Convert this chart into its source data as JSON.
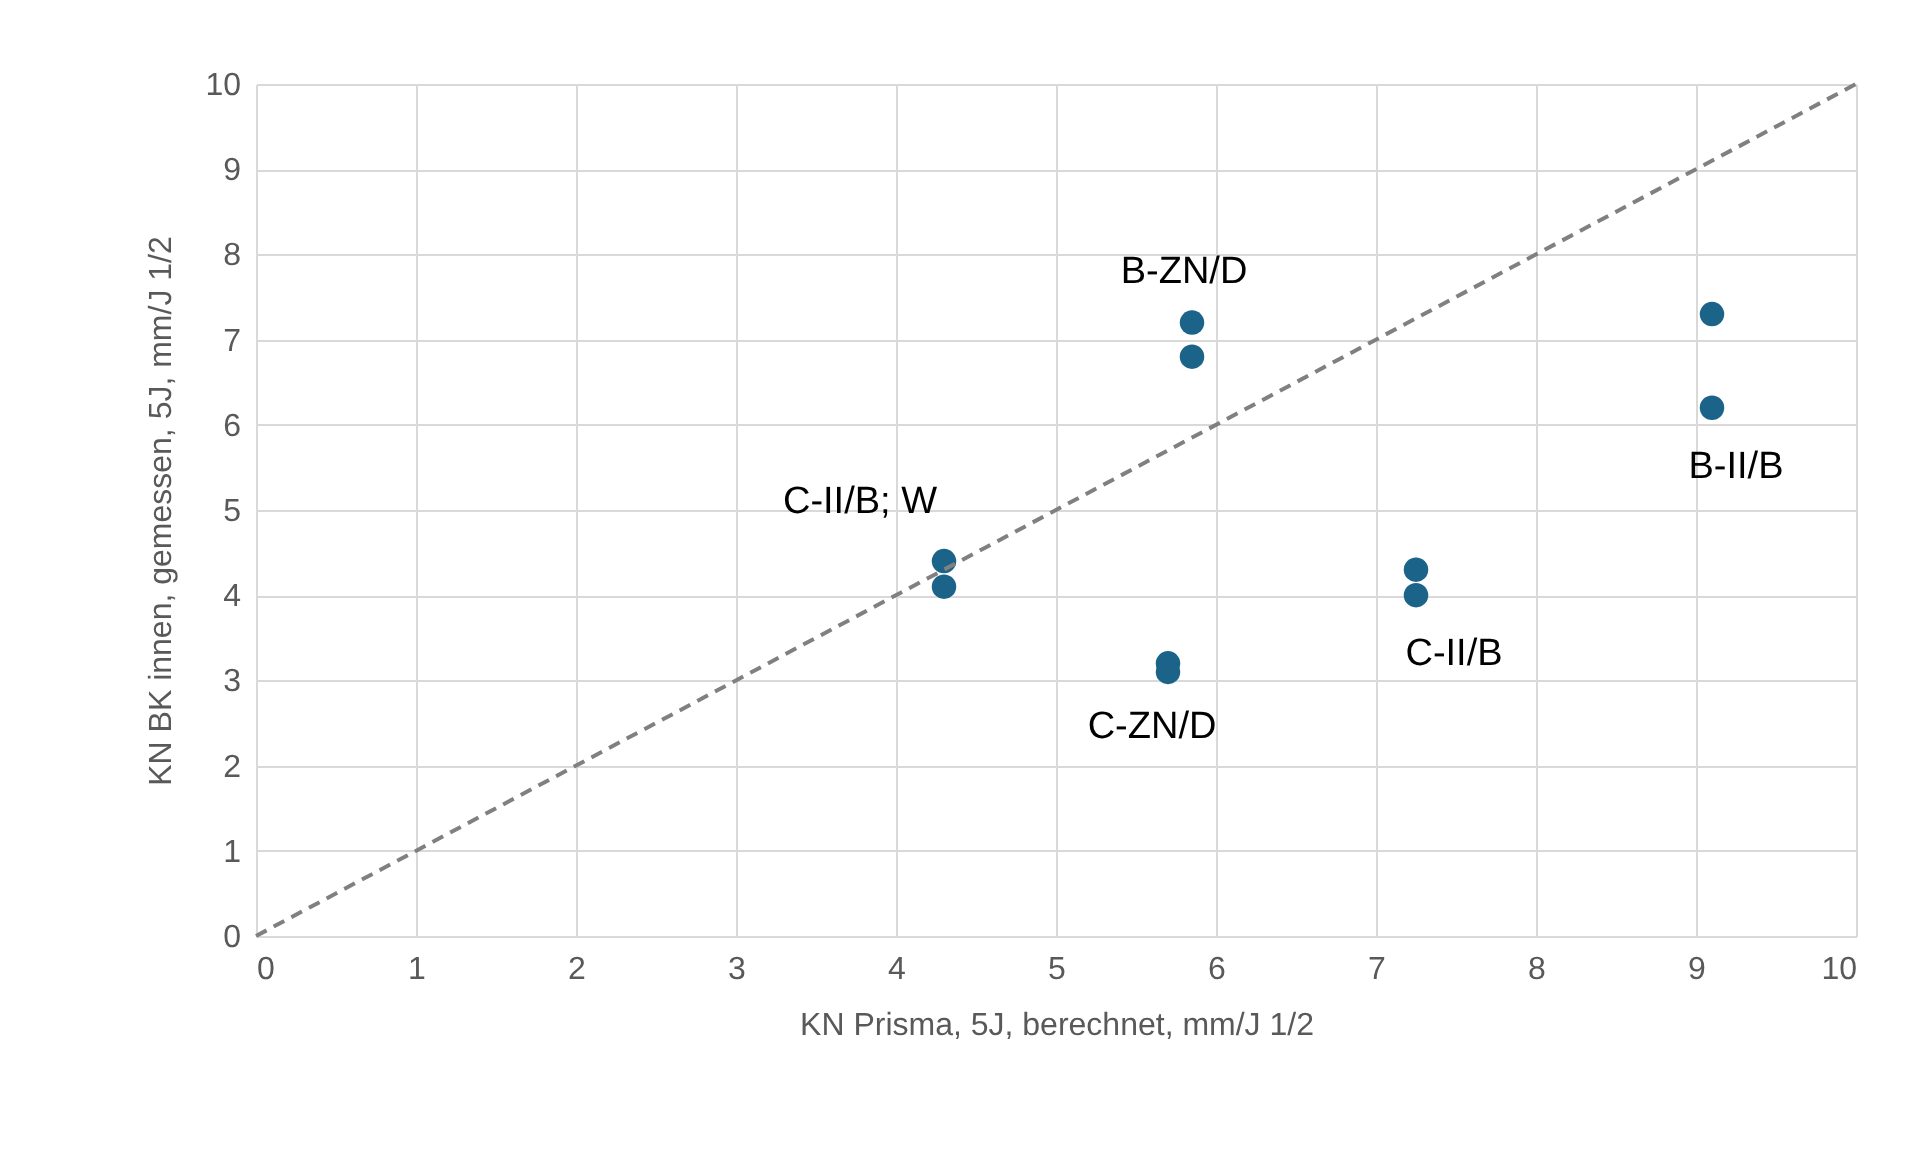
{
  "chart_data": {
    "type": "scatter",
    "xlabel": "KN Prisma, 5J, berechnet, mm/J 1/2",
    "ylabel": "KN BK innen, gemessen, 5J, mm/J 1/2",
    "xlim": [
      0,
      10
    ],
    "ylim": [
      0,
      10
    ],
    "xticks": [
      0,
      1,
      2,
      3,
      4,
      5,
      6,
      7,
      8,
      9,
      10
    ],
    "yticks": [
      0,
      1,
      2,
      3,
      4,
      5,
      6,
      7,
      8,
      9,
      10
    ],
    "grid": true,
    "marker": "circle",
    "series": [
      {
        "type": "scatter",
        "color": "#1b6388",
        "x": [
          4.3,
          4.3,
          5.7,
          5.7,
          5.85,
          5.85,
          7.25,
          7.25,
          9.1,
          9.1
        ],
        "values": [
          4.4,
          4.1,
          3.2,
          3.1,
          7.2,
          6.8,
          4.3,
          4.0,
          7.3,
          6.2
        ]
      },
      {
        "type": "line",
        "color": "#808080",
        "line_style": "dashed",
        "marker": "none",
        "x": [
          0,
          10
        ],
        "values": [
          0,
          10
        ]
      }
    ],
    "annotations": [
      {
        "text": "C-II/B; W",
        "x": 4.3,
        "y": 4.4
      },
      {
        "text": "B-ZN/D",
        "x": 5.85,
        "y": 7.2
      },
      {
        "text": "B-II/B",
        "x": 9.1,
        "y": 6.2
      },
      {
        "text": "C-II/B",
        "x": 7.25,
        "y": 4.0
      },
      {
        "text": "C-ZN/D",
        "x": 5.7,
        "y": 3.1
      }
    ]
  }
}
